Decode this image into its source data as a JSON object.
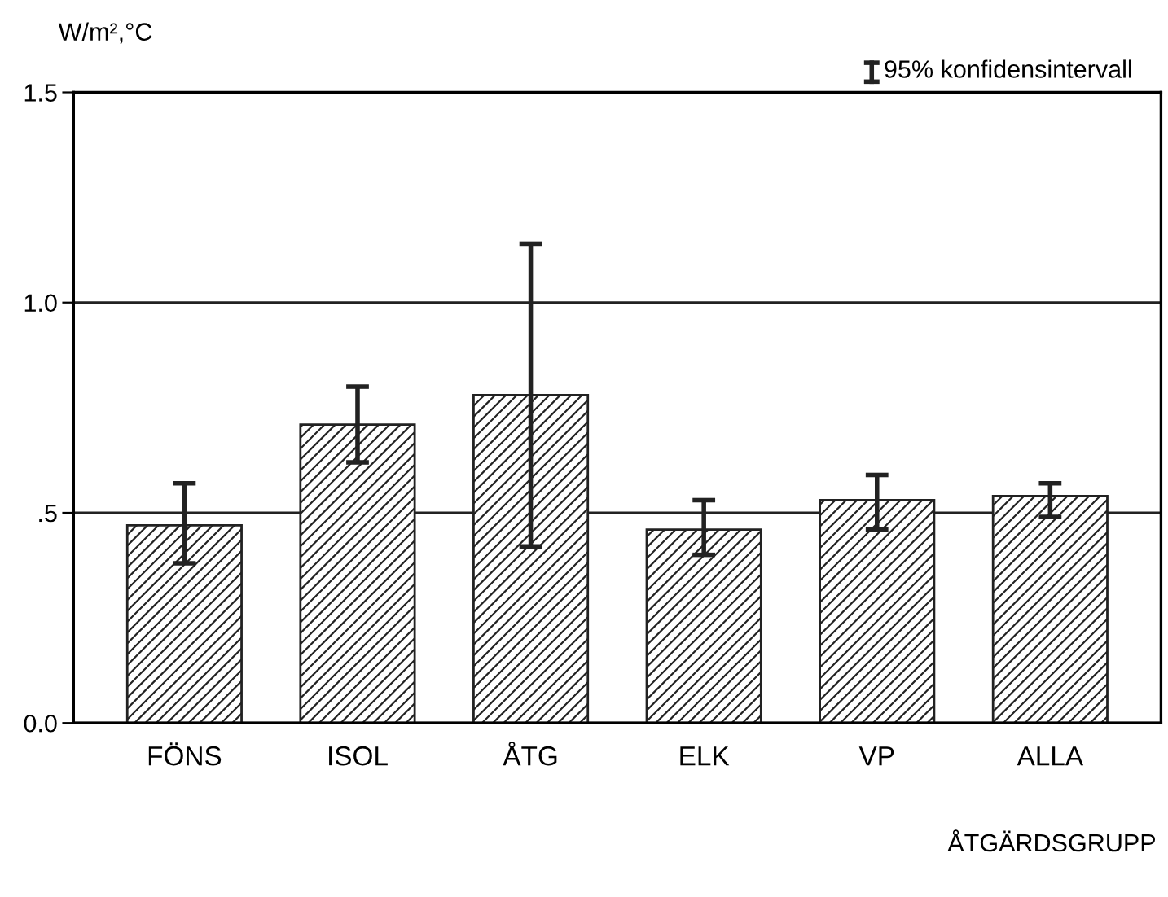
{
  "chart_data": {
    "type": "bar",
    "ylabel": "W/m²,°C",
    "xlabel": "ÅTGÄRDSGRUPP",
    "annotations": [
      "95% konfidensintervall"
    ],
    "categories": [
      "FÖNS",
      "ISOL",
      "ÅTG",
      "ELK",
      "VP",
      "ALLA"
    ],
    "values": [
      0.47,
      0.71,
      0.78,
      0.46,
      0.53,
      0.54
    ],
    "errors": [
      [
        0.38,
        0.57
      ],
      [
        0.62,
        0.8
      ],
      [
        0.42,
        1.14
      ],
      [
        0.4,
        0.53
      ],
      [
        0.46,
        0.59
      ],
      [
        0.49,
        0.57
      ]
    ],
    "color": "#222222",
    "ylim": [
      0,
      1.5
    ],
    "yticks": [
      {
        "value": 0,
        "label": "0.0"
      },
      {
        "value": 0.5,
        "label": ".5"
      },
      {
        "value": 1,
        "label": "1.0"
      },
      1.5
    ],
    "grid": "y",
    "legend": false
  }
}
